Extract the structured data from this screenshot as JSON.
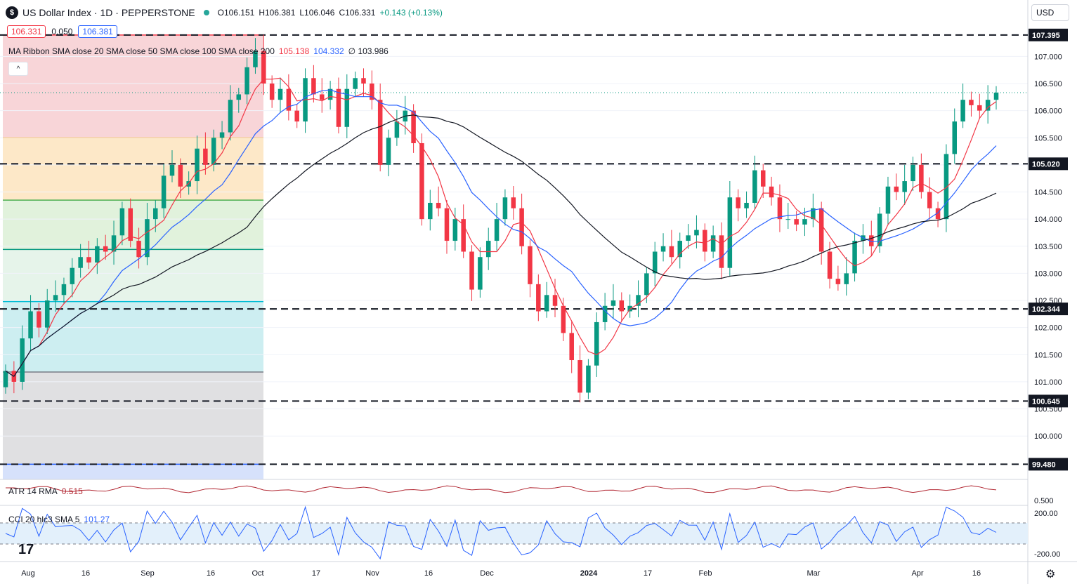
{
  "header": {
    "logo_glyph": "$",
    "title": "US Dollar Index · 1D · PEPPERSTONE",
    "open": "O106.151",
    "high": "H106.381",
    "low": "L106.046",
    "close": "C106.331",
    "change": "+0.143 (+0.13%)"
  },
  "price_boxes": {
    "bid": "106.331",
    "spread": "0.050",
    "ask": "106.381"
  },
  "ma_ribbon": {
    "label": "MA Ribbon SMA close 20 SMA close 50 SMA close 100 SMA close 200",
    "v20": "105.138",
    "v50": "104.332",
    "v200": "∅ 103.986"
  },
  "collapse_glyph": "^",
  "atr": {
    "label": "ATR 14 RMA",
    "value": "0.515"
  },
  "cci": {
    "label": "CCI 20 hlc3 SMA 5",
    "value": "101.27"
  },
  "currency": "USD",
  "tv_logo": "17",
  "settings_icon": "⚙",
  "colors": {
    "up": "#089981",
    "down": "#f23645",
    "sma20": "#f23645",
    "sma50": "#2962ff",
    "sma200": "#131722",
    "grid": "#f0f3fa"
  },
  "chart_data": {
    "type": "candlestick",
    "ylim": [
      99.2,
      107.6
    ],
    "y_ticks": [
      "107.000",
      "106.500",
      "106.000",
      "105.500",
      "105.000",
      "104.500",
      "104.000",
      "103.500",
      "103.000",
      "102.500",
      "102.000",
      "101.500",
      "101.000",
      "100.500",
      "100.000"
    ],
    "x_labels": [
      "Aug",
      "16",
      "Sep",
      "16",
      "Oct",
      "17",
      "Nov",
      "16",
      "Dec",
      "2024",
      "17",
      "Feb",
      "Mar",
      "Apr",
      "16"
    ],
    "horizontal_levels": [
      {
        "label": "107.395",
        "value": 107.395
      },
      {
        "label": "105.020",
        "value": 105.02
      },
      {
        "label": "102.344",
        "value": 102.344
      },
      {
        "label": "100.645",
        "value": 100.645
      },
      {
        "label": "99.480",
        "value": 99.48
      }
    ],
    "fib_levels": [
      107.395,
      105.5,
      104.35,
      103.44,
      102.48,
      101.18,
      99.48
    ],
    "last_price": 106.331,
    "close_series": [
      101.2,
      101.0,
      101.8,
      102.3,
      102.0,
      102.5,
      102.6,
      102.8,
      103.1,
      103.3,
      103.2,
      103.5,
      103.4,
      103.7,
      104.2,
      103.6,
      103.3,
      104.0,
      104.2,
      104.8,
      105.0,
      104.6,
      104.7,
      105.3,
      105.0,
      105.5,
      105.6,
      106.2,
      106.3,
      106.8,
      107.1,
      106.5,
      106.2,
      106.4,
      106.0,
      105.8,
      106.6,
      106.3,
      106.2,
      106.4,
      105.7,
      106.4,
      106.6,
      106.5,
      106.2,
      105.0,
      105.5,
      105.8,
      106.0,
      105.4,
      104.0,
      104.3,
      104.2,
      103.6,
      104.0,
      103.4,
      102.7,
      103.3,
      103.6,
      104.0,
      104.4,
      104.2,
      103.5,
      102.8,
      102.3,
      102.6,
      102.4,
      101.9,
      101.4,
      100.8,
      101.3,
      102.1,
      102.4,
      102.5,
      102.3,
      102.4,
      102.6,
      103.0,
      103.4,
      103.5,
      103.3,
      103.6,
      103.7,
      103.8,
      103.4,
      103.7,
      103.1,
      104.4,
      104.2,
      104.3,
      104.9,
      104.6,
      104.4,
      104.0,
      104.0,
      103.9,
      104.0,
      104.2,
      103.4,
      102.9,
      102.8,
      103.0,
      103.6,
      103.7,
      103.5,
      104.1,
      104.6,
      104.5,
      104.7,
      105.0,
      104.5,
      104.2,
      104.0,
      105.2,
      105.8,
      106.2,
      106.1,
      106.0,
      106.2,
      106.331
    ]
  }
}
